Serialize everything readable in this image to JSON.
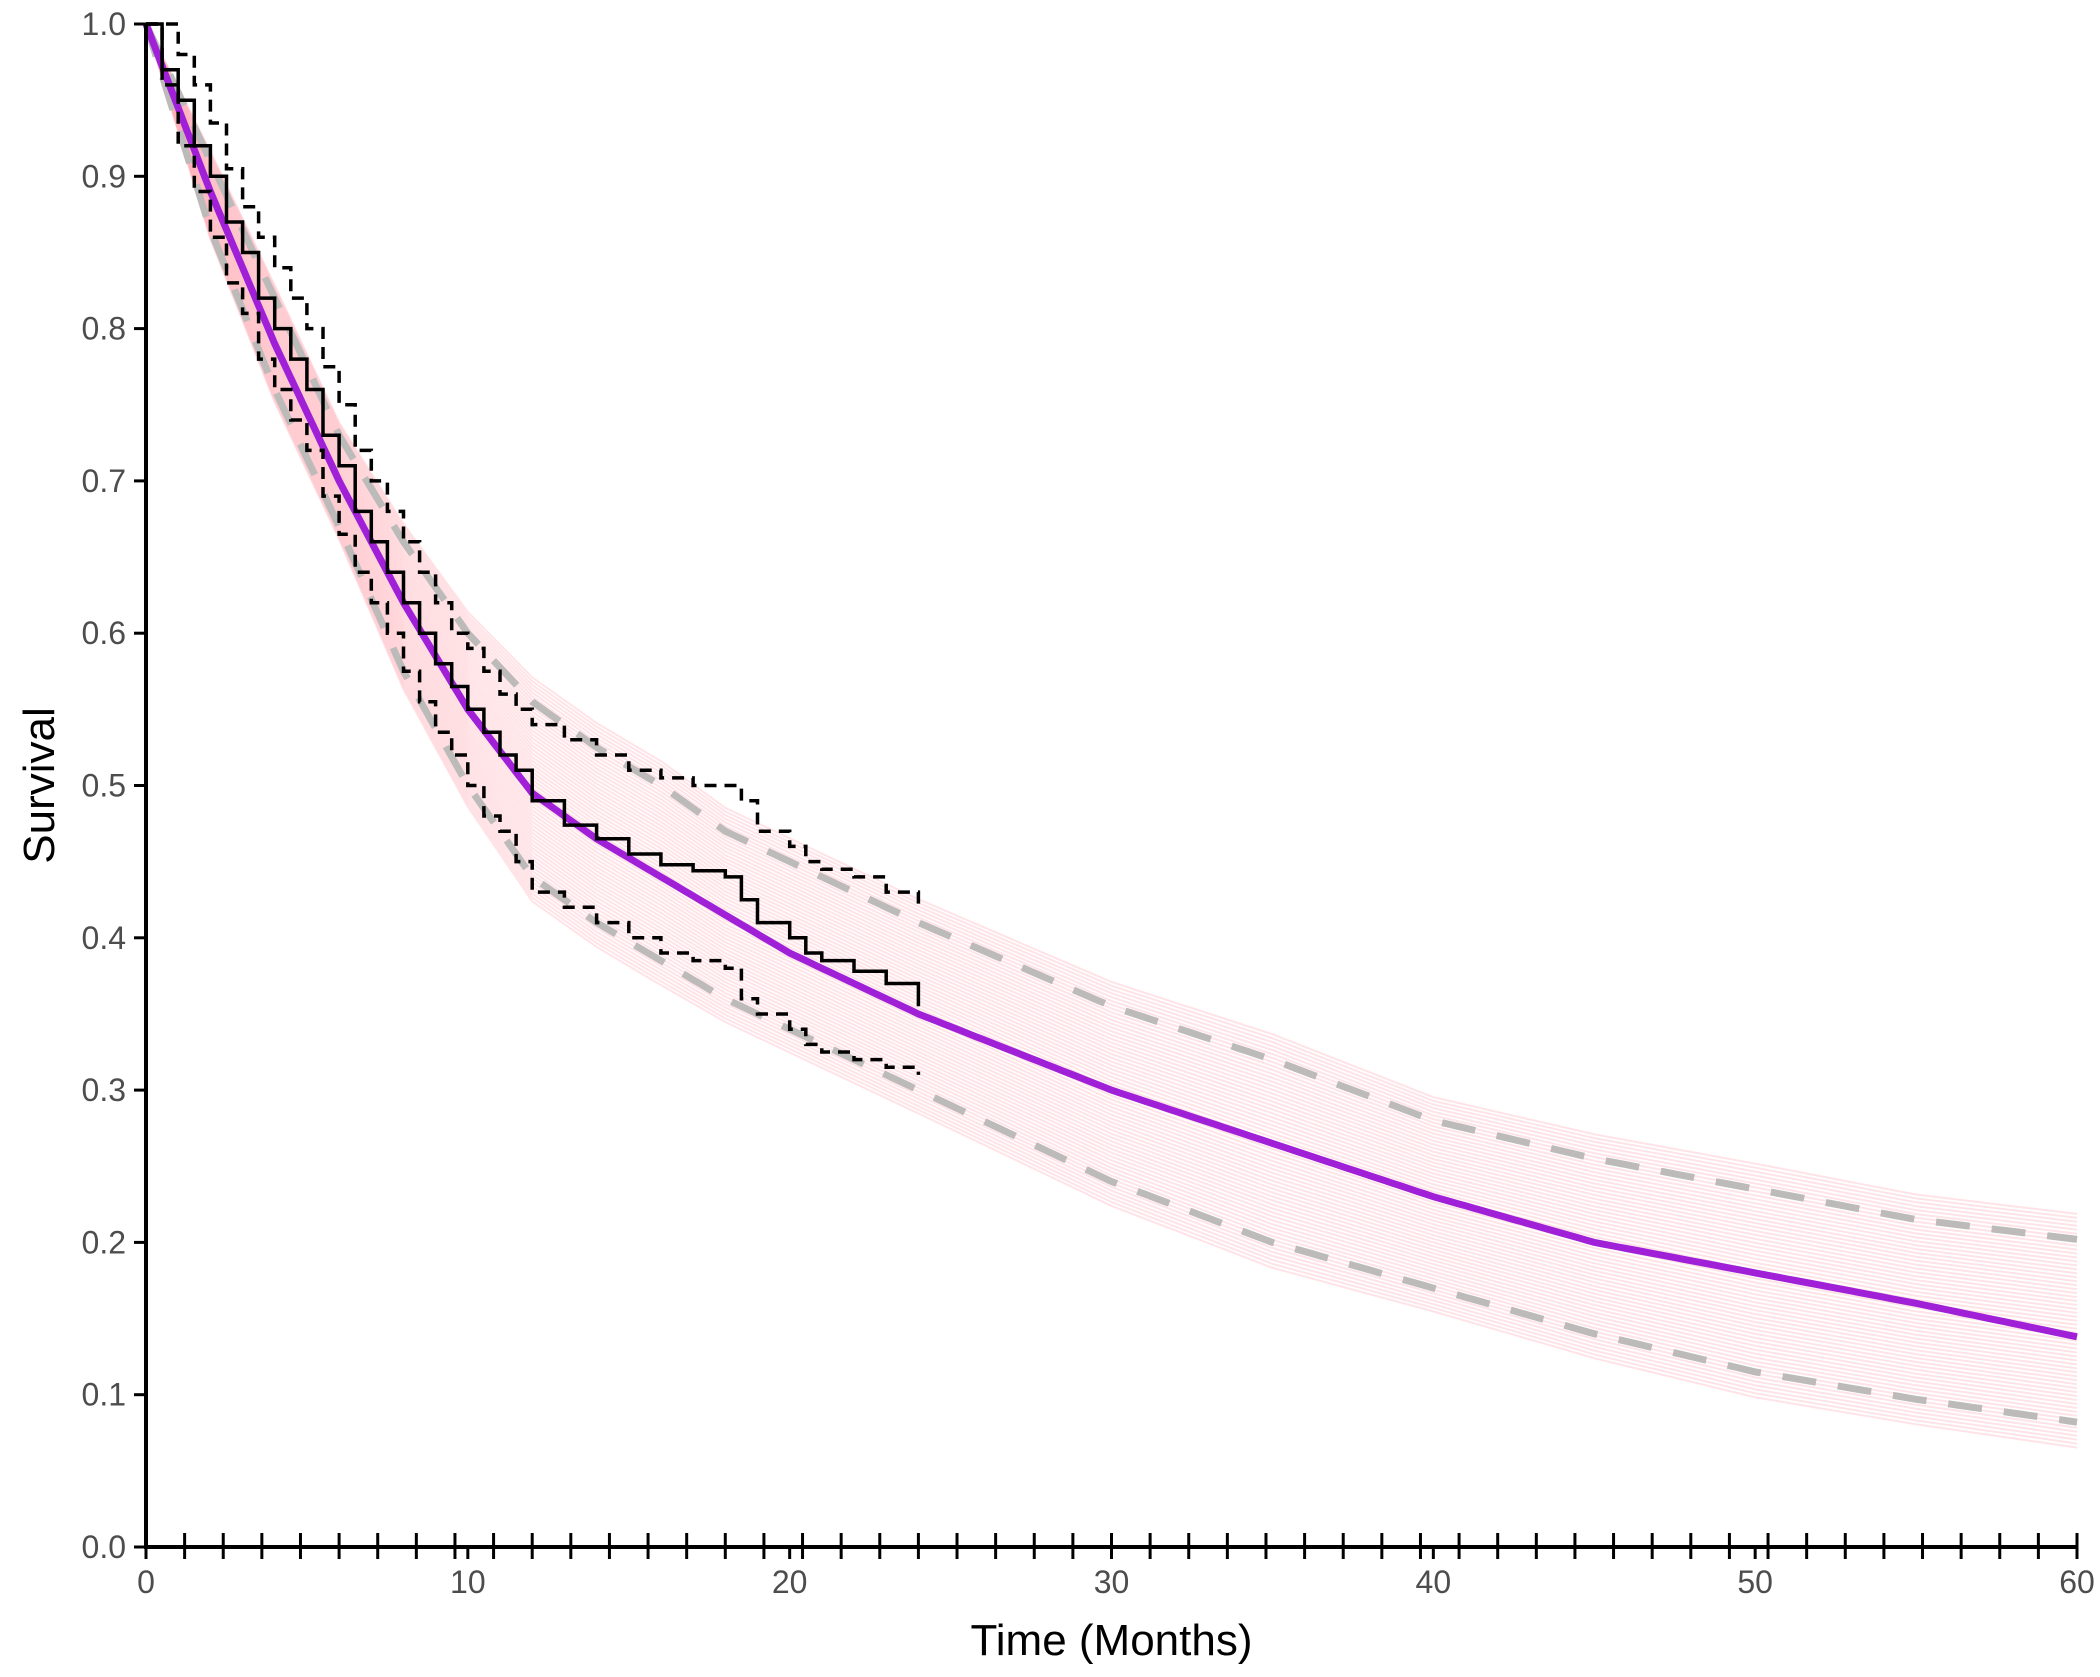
{
  "chart_data": {
    "type": "line",
    "title": "",
    "xlabel": "Time (Months)",
    "ylabel": "Survival",
    "xlim": [
      0,
      60
    ],
    "ylim": [
      0,
      1
    ],
    "x_ticks": [
      "0",
      "10",
      "20",
      "30",
      "40",
      "50",
      "60"
    ],
    "y_ticks": [
      "0.0",
      "0.1",
      "0.2",
      "0.3",
      "0.4",
      "0.5",
      "0.6",
      "0.7",
      "0.8",
      "0.9",
      "1.0"
    ],
    "x_minor_tick_step": 1.2,
    "grid": false,
    "legend": "none",
    "colors": {
      "model": "#a020d8",
      "model_interval": "#bdbaba",
      "km": "#000000",
      "km_ci": "#000000",
      "samples": "#ffb0b8"
    },
    "series": [
      {
        "role": "model",
        "style": "solid",
        "x": [
          0,
          2,
          4,
          6,
          8,
          10,
          12,
          14,
          16,
          18,
          20,
          22,
          24,
          30,
          35,
          40,
          45,
          50,
          55,
          60
        ],
        "y": [
          1.0,
          0.89,
          0.79,
          0.7,
          0.62,
          0.55,
          0.495,
          0.465,
          0.44,
          0.415,
          0.39,
          0.37,
          0.35,
          0.3,
          0.265,
          0.23,
          0.2,
          0.18,
          0.16,
          0.138
        ]
      },
      {
        "role": "model_interval_upper",
        "style": "dashed",
        "x": [
          0,
          2,
          4,
          6,
          8,
          10,
          12,
          14,
          16,
          18,
          20,
          22,
          24,
          30,
          35,
          40,
          45,
          50,
          55,
          60
        ],
        "y": [
          1.0,
          0.91,
          0.82,
          0.73,
          0.66,
          0.6,
          0.555,
          0.525,
          0.5,
          0.47,
          0.45,
          0.43,
          0.41,
          0.355,
          0.32,
          0.28,
          0.255,
          0.235,
          0.215,
          0.202
        ]
      },
      {
        "role": "model_interval_lower",
        "style": "dashed",
        "x": [
          0,
          2,
          4,
          6,
          8,
          10,
          12,
          14,
          16,
          18,
          20,
          22,
          24,
          30,
          35,
          40,
          45,
          50,
          55,
          60
        ],
        "y": [
          1.0,
          0.865,
          0.76,
          0.67,
          0.575,
          0.5,
          0.44,
          0.41,
          0.385,
          0.36,
          0.34,
          0.32,
          0.3,
          0.24,
          0.2,
          0.17,
          0.14,
          0.115,
          0.097,
          0.082
        ]
      },
      {
        "role": "km",
        "style": "step",
        "x": [
          0,
          0.5,
          1,
          1.5,
          2,
          2.5,
          3,
          3.5,
          4,
          4.5,
          5,
          5.5,
          6,
          6.5,
          7,
          7.5,
          8,
          8.5,
          9,
          9.5,
          10,
          10.5,
          11,
          11.5,
          12,
          13,
          14,
          15,
          16,
          17,
          18,
          18.5,
          19,
          20,
          20.5,
          21,
          22,
          23,
          24
        ],
        "y": [
          1.0,
          0.97,
          0.95,
          0.92,
          0.9,
          0.87,
          0.85,
          0.82,
          0.8,
          0.78,
          0.76,
          0.73,
          0.71,
          0.68,
          0.66,
          0.64,
          0.62,
          0.6,
          0.58,
          0.565,
          0.55,
          0.535,
          0.52,
          0.51,
          0.49,
          0.474,
          0.465,
          0.455,
          0.448,
          0.444,
          0.44,
          0.425,
          0.41,
          0.4,
          0.39,
          0.385,
          0.378,
          0.37,
          0.355
        ]
      },
      {
        "role": "km_ci_upper",
        "style": "dashed-step",
        "x": [
          0,
          0.5,
          1,
          1.5,
          2,
          2.5,
          3,
          3.5,
          4,
          4.5,
          5,
          5.5,
          6,
          6.5,
          7,
          7.5,
          8,
          8.5,
          9,
          9.5,
          10,
          10.5,
          11,
          11.5,
          12,
          13,
          14,
          15,
          16,
          17,
          18,
          18.5,
          19,
          20,
          20.5,
          21,
          22,
          23,
          24
        ],
        "y": [
          1.0,
          1.0,
          0.98,
          0.96,
          0.935,
          0.905,
          0.88,
          0.86,
          0.84,
          0.82,
          0.8,
          0.775,
          0.75,
          0.72,
          0.7,
          0.68,
          0.66,
          0.64,
          0.62,
          0.6,
          0.59,
          0.575,
          0.56,
          0.55,
          0.54,
          0.53,
          0.52,
          0.51,
          0.505,
          0.5,
          0.5,
          0.49,
          0.47,
          0.46,
          0.45,
          0.445,
          0.44,
          0.43,
          0.42
        ]
      },
      {
        "role": "km_ci_lower",
        "style": "dashed-step",
        "x": [
          0,
          0.5,
          1,
          1.5,
          2,
          2.5,
          3,
          3.5,
          4,
          4.5,
          5,
          5.5,
          6,
          6.5,
          7,
          7.5,
          8,
          8.5,
          9,
          9.5,
          10,
          10.5,
          11,
          11.5,
          12,
          13,
          14,
          15,
          16,
          17,
          18,
          18.5,
          19,
          20,
          20.5,
          21,
          22,
          23,
          24
        ],
        "y": [
          1.0,
          0.96,
          0.92,
          0.89,
          0.86,
          0.83,
          0.81,
          0.78,
          0.76,
          0.74,
          0.72,
          0.69,
          0.665,
          0.64,
          0.62,
          0.6,
          0.575,
          0.555,
          0.535,
          0.52,
          0.5,
          0.48,
          0.47,
          0.45,
          0.43,
          0.42,
          0.41,
          0.4,
          0.39,
          0.385,
          0.38,
          0.36,
          0.35,
          0.34,
          0.33,
          0.325,
          0.32,
          0.315,
          0.31
        ]
      }
    ]
  }
}
